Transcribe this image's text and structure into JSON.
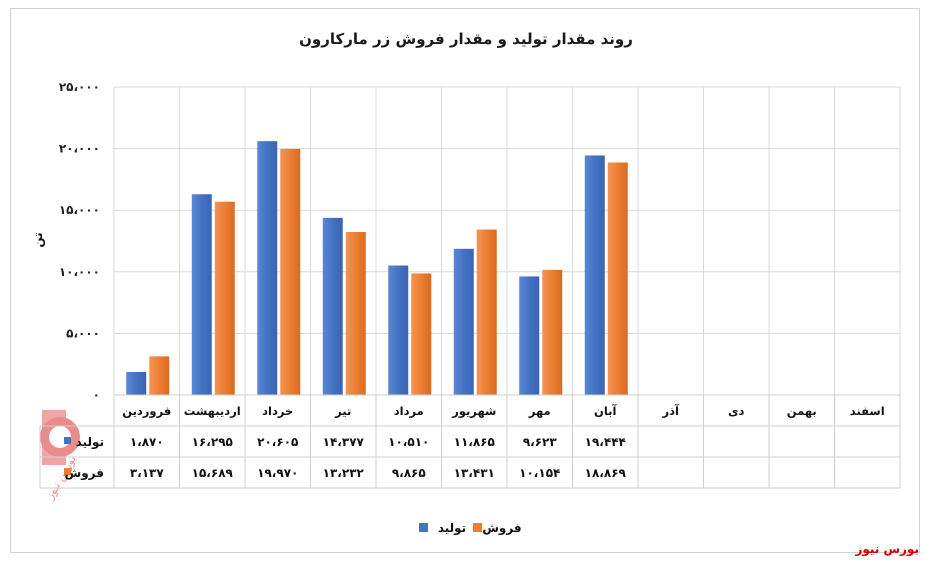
{
  "chart_data": {
    "type": "bar",
    "title": "روند مقدار تولید و مقدار فروش زر مارکارون",
    "ylabel": "تن",
    "ylim": [
      0,
      25000
    ],
    "yticks": [
      "۰",
      "۵،۰۰۰",
      "۱۰،۰۰۰",
      "۱۵،۰۰۰",
      "۲۰،۰۰۰",
      "۲۵،۰۰۰"
    ],
    "ytick_values": [
      0,
      5000,
      10000,
      15000,
      20000,
      25000
    ],
    "categories": [
      "فروردین",
      "اردیبهشت",
      "خرداد",
      "تیر",
      "مرداد",
      "شهریور",
      "مهر",
      "آبان",
      "آذر",
      "دی",
      "بهمن",
      "اسفند"
    ],
    "series": [
      {
        "name": "تولید",
        "color": "#4472c4",
        "values": [
          1870,
          16295,
          20605,
          14377,
          10510,
          11865,
          9623,
          19444,
          null,
          null,
          null,
          null
        ],
        "labels": [
          "۱،۸۷۰",
          "۱۶،۲۹۵",
          "۲۰،۶۰۵",
          "۱۴،۳۷۷",
          "۱۰،۵۱۰",
          "۱۱،۸۶۵",
          "۹،۶۲۳",
          "۱۹،۴۴۴",
          "",
          "",
          "",
          ""
        ]
      },
      {
        "name": "فروش",
        "color": "#ed7d31",
        "values": [
          3137,
          15689,
          19970,
          13232,
          9865,
          13431,
          10154,
          18869,
          null,
          null,
          null,
          null
        ],
        "labels": [
          "۳،۱۳۷",
          "۱۵،۶۸۹",
          "۱۹،۹۷۰",
          "۱۳،۲۳۲",
          "۹،۸۶۵",
          "۱۳،۴۳۱",
          "۱۰،۱۵۴",
          "۱۸،۸۶۹",
          "",
          "",
          "",
          ""
        ]
      }
    ],
    "grid": true,
    "legend": "bottom",
    "data_table": true
  },
  "source_label": "بورس نیوز",
  "watermark_text": "بورس نیوز"
}
